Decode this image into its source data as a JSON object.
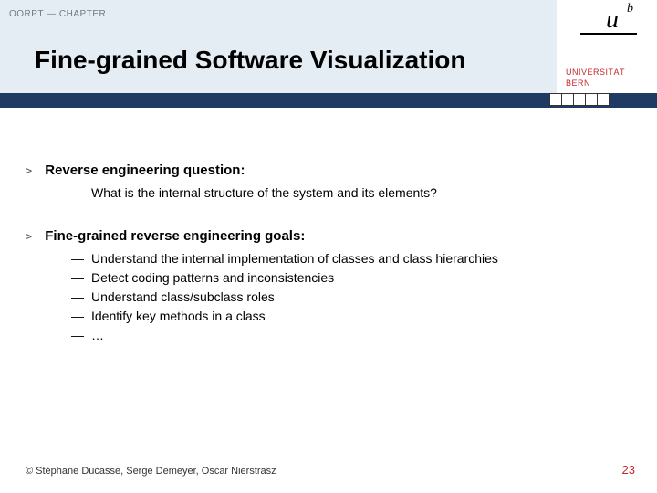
{
  "header": {
    "chapter_label": "OORPT — CHAPTER",
    "title": "Fine-grained Software Visualization"
  },
  "logo": {
    "university_line1": "UNIVERSITÄT",
    "university_line2": "BERN",
    "u": "u",
    "b": "b"
  },
  "sections": [
    {
      "title": "Reverse engineering question:",
      "items": [
        "What is the internal structure of the system and its elements?"
      ]
    },
    {
      "title": "Fine-grained reverse engineering goals:",
      "items": [
        "Understand the internal implementation of classes and class hierarchies",
        "Detect coding patterns and inconsistencies",
        "Understand class/subclass roles",
        "Identify key methods in a class",
        "…"
      ]
    }
  ],
  "footer": {
    "copyright": "© Stéphane Ducasse, Serge Demeyer, Oscar Nierstrasz",
    "page_number": "23"
  },
  "colors": {
    "header_band": "#e5edf4",
    "dark_band": "#1f3b63",
    "accent_red": "#c62828"
  }
}
